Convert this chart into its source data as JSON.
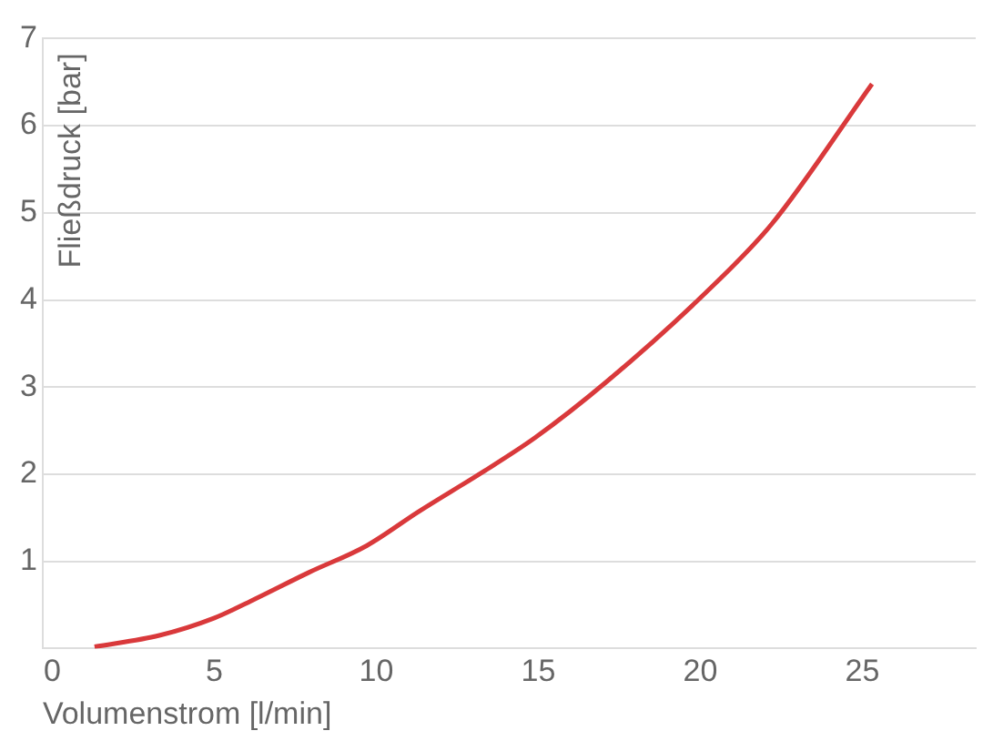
{
  "chart_data": {
    "type": "line",
    "xlabel": "Volumenstrom [l/min]",
    "ylabel": "Fließdruck [bar]",
    "x": [
      1.3,
      3.3,
      5,
      6.1,
      7.9,
      9.7,
      11.3,
      13.3,
      14.9,
      17.1,
      20.1,
      22.2,
      25.3
    ],
    "series": [
      {
        "color": "#d9393b",
        "values": [
          0.02,
          0.15,
          0.35,
          0.54,
          0.87,
          1.18,
          1.57,
          2.03,
          2.42,
          3.06,
          4.06,
          4.87,
          6.48
        ]
      }
    ],
    "xlim": [
      -0.3,
      28.5
    ],
    "xticks": [
      0,
      5,
      10,
      15,
      20,
      25
    ],
    "ylim": [
      0,
      7
    ],
    "yticks": [
      1,
      2,
      3,
      4,
      5,
      6,
      7
    ],
    "grid": "y",
    "legend": false,
    "marker": "none",
    "line_style": "solid"
  }
}
